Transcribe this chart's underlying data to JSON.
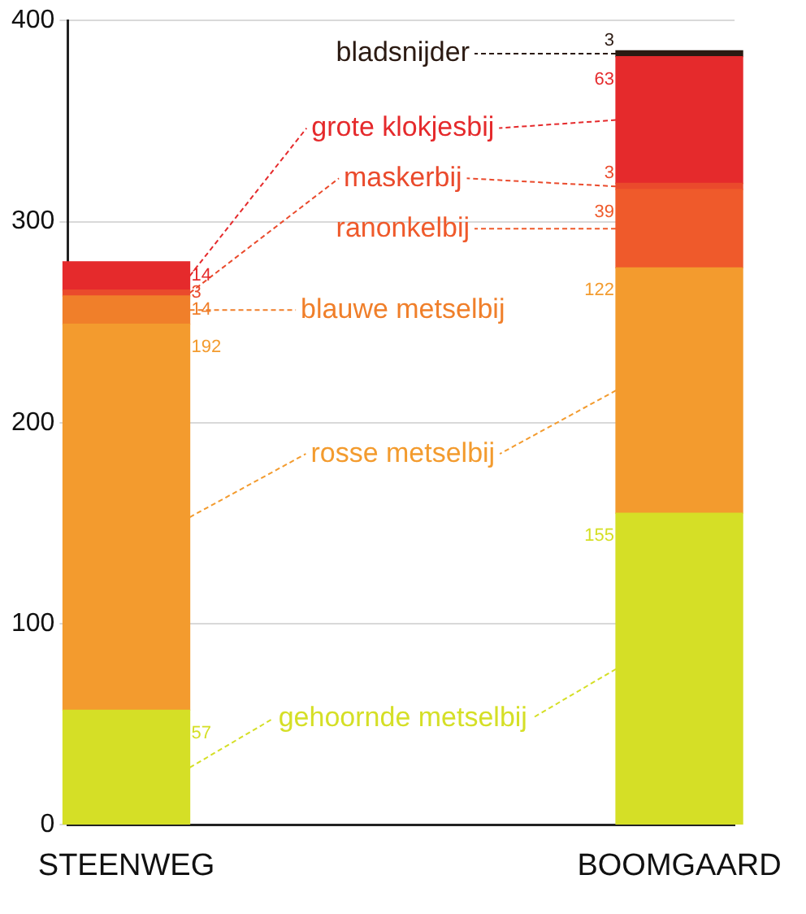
{
  "chart_data": {
    "type": "bar",
    "stacked": true,
    "categories": [
      "STEENWEG",
      "BOOMGAARD"
    ],
    "series": [
      {
        "name": "gehoornde metselbij",
        "color": "#d5df26",
        "values": [
          57,
          155
        ],
        "value_labels": [
          "57",
          "155"
        ]
      },
      {
        "name": "rosse metselbij",
        "color": "#f39b2e",
        "values": [
          192,
          122
        ],
        "value_labels": [
          "192",
          "122"
        ]
      },
      {
        "name": "blauwe metselbij",
        "color": "#f07f2a",
        "values": [
          14,
          null
        ],
        "value_labels": [
          "14",
          null
        ]
      },
      {
        "name": "ranonkelbij",
        "color": "#ef5a2b",
        "values": [
          null,
          39
        ],
        "value_labels": [
          null,
          "39"
        ]
      },
      {
        "name": "maskerbij",
        "color": "#ea4a2c",
        "values": [
          3,
          3
        ],
        "value_labels": [
          "3",
          "3"
        ]
      },
      {
        "name": "grote klokjesbij",
        "color": "#e52a2c",
        "values": [
          14,
          63
        ],
        "value_labels": [
          "14",
          "63"
        ]
      },
      {
        "name": "bladsnijder",
        "color": "#2b1a12",
        "values": [
          null,
          3
        ],
        "value_labels": [
          null,
          "3"
        ]
      }
    ],
    "ylim": [
      0,
      400
    ],
    "yticks": [
      0,
      100,
      200,
      300,
      400
    ],
    "grid": "y"
  }
}
